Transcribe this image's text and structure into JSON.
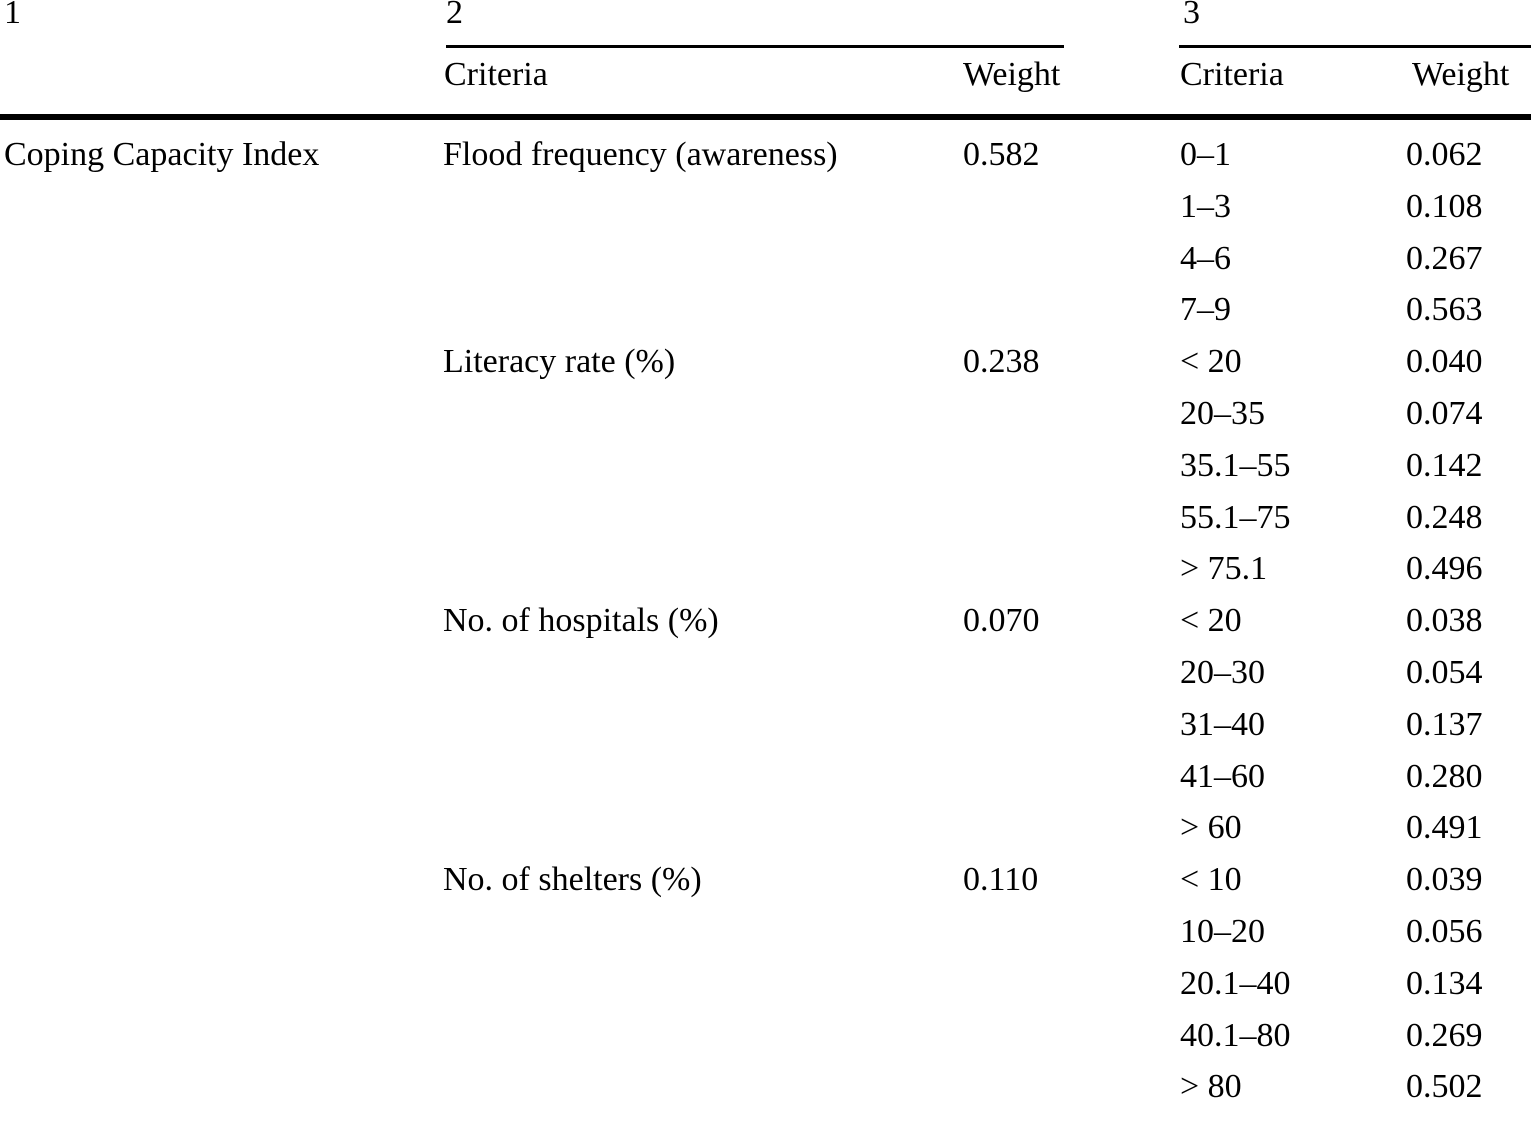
{
  "table": {
    "col_groups": [
      {
        "label": "1",
        "columns": []
      },
      {
        "label": "2",
        "columns": [
          "Criteria",
          "Weight"
        ]
      },
      {
        "label": "3",
        "columns": [
          "Criteria",
          "Weight"
        ]
      }
    ],
    "index_label": "Coping Capacity Index",
    "rows": [
      {
        "index": "Coping Capacity Index",
        "criteria": "Flood frequency (awareness)",
        "weight": "0.582",
        "sub_criteria": "0–1",
        "sub_weight": "0.062"
      },
      {
        "index": "",
        "criteria": "",
        "weight": "",
        "sub_criteria": "1–3",
        "sub_weight": "0.108"
      },
      {
        "index": "",
        "criteria": "",
        "weight": "",
        "sub_criteria": "4–6",
        "sub_weight": "0.267"
      },
      {
        "index": "",
        "criteria": "",
        "weight": "",
        "sub_criteria": "7–9",
        "sub_weight": "0.563"
      },
      {
        "index": "",
        "criteria": "Literacy rate (%)",
        "weight": "0.238",
        "sub_criteria": "< 20",
        "sub_weight": "0.040"
      },
      {
        "index": "",
        "criteria": "",
        "weight": "",
        "sub_criteria": "20–35",
        "sub_weight": "0.074"
      },
      {
        "index": "",
        "criteria": "",
        "weight": "",
        "sub_criteria": "35.1–55",
        "sub_weight": "0.142"
      },
      {
        "index": "",
        "criteria": "",
        "weight": "",
        "sub_criteria": "55.1–75",
        "sub_weight": "0.248"
      },
      {
        "index": "",
        "criteria": "",
        "weight": "",
        "sub_criteria": "> 75.1",
        "sub_weight": "0.496"
      },
      {
        "index": "",
        "criteria": "No. of hospitals (%)",
        "weight": "0.070",
        "sub_criteria": "< 20",
        "sub_weight": "0.038"
      },
      {
        "index": "",
        "criteria": "",
        "weight": "",
        "sub_criteria": "20–30",
        "sub_weight": "0.054"
      },
      {
        "index": "",
        "criteria": "",
        "weight": "",
        "sub_criteria": "31–40",
        "sub_weight": "0.137"
      },
      {
        "index": "",
        "criteria": "",
        "weight": "",
        "sub_criteria": "41–60",
        "sub_weight": "0.280"
      },
      {
        "index": "",
        "criteria": "",
        "weight": "",
        "sub_criteria": "> 60",
        "sub_weight": "0.491"
      },
      {
        "index": "",
        "criteria": "No. of shelters (%)",
        "weight": "0.110",
        "sub_criteria": "< 10",
        "sub_weight": "0.039"
      },
      {
        "index": "",
        "criteria": "",
        "weight": "",
        "sub_criteria": "10–20",
        "sub_weight": "0.056"
      },
      {
        "index": "",
        "criteria": "",
        "weight": "",
        "sub_criteria": "20.1–40",
        "sub_weight": "0.134"
      },
      {
        "index": "",
        "criteria": "",
        "weight": "",
        "sub_criteria": "40.1–80",
        "sub_weight": "0.269"
      },
      {
        "index": "",
        "criteria": "",
        "weight": "",
        "sub_criteria": "> 80",
        "sub_weight": "0.502"
      }
    ],
    "colors": {
      "text": "#000000",
      "rule": "#000000",
      "background": "#ffffff"
    }
  }
}
